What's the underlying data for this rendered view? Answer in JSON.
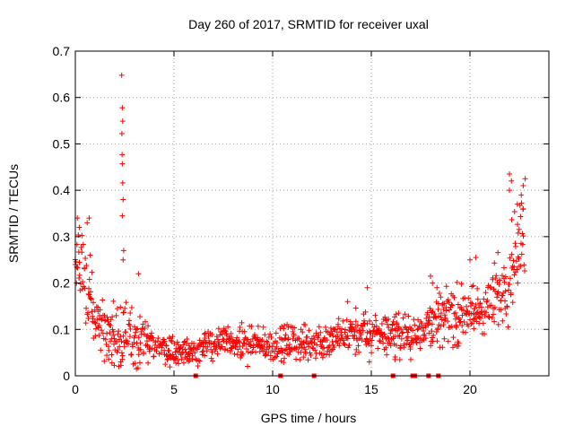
{
  "chart_data": {
    "type": "scatter",
    "title": "Day 260 of 2017, SRMTID for receiver uxal",
    "xlabel": "GPS time / hours",
    "ylabel": "SRMTID / TECUs",
    "xlim": [
      0,
      24
    ],
    "ylim": [
      0,
      0.7
    ],
    "xticks": [
      0,
      5,
      10,
      15,
      20
    ],
    "yticks": [
      0,
      0.1,
      0.2,
      0.3,
      0.4,
      0.5,
      0.6,
      0.7
    ],
    "grid": true,
    "marker": "+",
    "color": "#ff0000",
    "zero_markers_x": [
      6.1,
      10.4,
      12.1,
      16.1,
      17.1,
      17.2,
      17.9,
      18.4
    ],
    "envelope": [
      [
        0.0,
        0.22,
        0.07
      ],
      [
        0.3,
        0.24,
        0.07
      ],
      [
        0.6,
        0.2,
        0.07
      ],
      [
        1.0,
        0.13,
        0.04
      ],
      [
        1.5,
        0.1,
        0.04
      ],
      [
        2.0,
        0.08,
        0.04
      ],
      [
        2.5,
        0.1,
        0.05
      ],
      [
        3.0,
        0.08,
        0.035
      ],
      [
        3.5,
        0.07,
        0.03
      ],
      [
        4.0,
        0.065,
        0.025
      ],
      [
        4.5,
        0.06,
        0.02
      ],
      [
        5.0,
        0.055,
        0.02
      ],
      [
        5.5,
        0.05,
        0.018
      ],
      [
        6.0,
        0.055,
        0.02
      ],
      [
        6.5,
        0.065,
        0.02
      ],
      [
        7.0,
        0.07,
        0.025
      ],
      [
        8.0,
        0.07,
        0.025
      ],
      [
        9.0,
        0.065,
        0.022
      ],
      [
        10.0,
        0.065,
        0.022
      ],
      [
        11.0,
        0.07,
        0.025
      ],
      [
        12.0,
        0.07,
        0.025
      ],
      [
        13.0,
        0.075,
        0.025
      ],
      [
        14.0,
        0.09,
        0.03
      ],
      [
        15.0,
        0.09,
        0.03
      ],
      [
        16.0,
        0.095,
        0.03
      ],
      [
        17.0,
        0.085,
        0.025
      ],
      [
        18.0,
        0.12,
        0.035
      ],
      [
        19.0,
        0.13,
        0.04
      ],
      [
        20.0,
        0.13,
        0.04
      ],
      [
        21.0,
        0.15,
        0.04
      ],
      [
        21.8,
        0.2,
        0.06
      ],
      [
        22.3,
        0.27,
        0.07
      ],
      [
        22.8,
        0.32,
        0.07
      ]
    ],
    "highlights": [
      [
        2.35,
        0.648
      ],
      [
        2.38,
        0.578
      ],
      [
        2.4,
        0.549
      ],
      [
        2.36,
        0.522
      ],
      [
        2.37,
        0.477
      ],
      [
        2.38,
        0.457
      ],
      [
        2.4,
        0.416
      ],
      [
        2.42,
        0.38
      ],
      [
        2.38,
        0.345
      ],
      [
        2.45,
        0.27
      ],
      [
        2.42,
        0.25
      ],
      [
        0.1,
        0.34
      ],
      [
        0.7,
        0.34
      ],
      [
        0.2,
        0.32
      ],
      [
        0.6,
        0.33
      ],
      [
        22.0,
        0.435
      ],
      [
        22.1,
        0.42
      ],
      [
        22.0,
        0.4
      ],
      [
        22.8,
        0.425
      ],
      [
        22.7,
        0.41
      ],
      [
        22.6,
        0.39
      ],
      [
        22.4,
        0.37
      ],
      [
        22.7,
        0.36
      ],
      [
        18.0,
        0.215
      ],
      [
        18.1,
        0.2
      ],
      [
        20.0,
        0.25
      ],
      [
        20.3,
        0.255
      ],
      [
        14.8,
        0.19
      ],
      [
        13.8,
        0.16
      ],
      [
        3.2,
        0.22
      ],
      [
        2.2,
        0.02
      ],
      [
        2.3,
        0.03
      ],
      [
        16.2,
        0.035
      ],
      [
        17.0,
        0.035
      ],
      [
        14.9,
        0.03
      ]
    ]
  }
}
